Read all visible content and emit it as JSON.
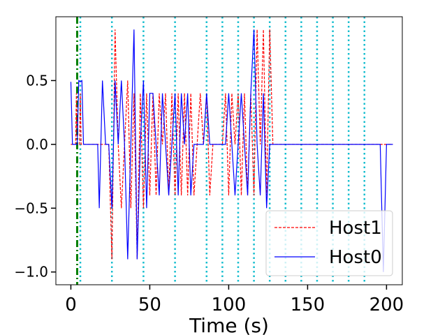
{
  "chart_data": {
    "type": "line",
    "title": "",
    "xlabel": "Time (s)",
    "ylabel": "",
    "xlim": [
      -9.5,
      210
    ],
    "ylim": [
      -1.1,
      1.0
    ],
    "xticks": [
      0,
      50,
      100,
      150,
      200
    ],
    "xtick_labels": [
      "0",
      "50",
      "100",
      "150",
      "200"
    ],
    "yticks": [
      -1.0,
      -0.5,
      0.0,
      0.5
    ],
    "ytick_labels": [
      "−1.0",
      "−0.5",
      "0.0",
      "0.5"
    ],
    "grid": false,
    "legend_position": "lower-right",
    "vertical_markers": {
      "cyan_dotted_x": [
        6,
        26,
        46,
        66,
        86,
        96,
        106,
        116,
        126,
        136,
        146,
        156,
        166,
        176,
        186
      ],
      "green_dashdot_x": [
        4
      ]
    },
    "series": [
      {
        "name": "Host1",
        "color": "#ff0000",
        "style": "dashed",
        "points": [
          [
            0,
            0
          ],
          [
            3,
            0
          ],
          [
            3.5,
            0.4
          ],
          [
            4,
            0
          ],
          [
            5.5,
            0
          ],
          [
            6,
            0.4
          ],
          [
            6.5,
            0
          ],
          [
            24,
            0
          ],
          [
            26,
            -0.9
          ],
          [
            28,
            0.9
          ],
          [
            30,
            0
          ],
          [
            32,
            -0.5
          ],
          [
            34,
            0
          ],
          [
            36,
            0.5
          ],
          [
            38,
            -0.5
          ],
          [
            40,
            0.4
          ],
          [
            42,
            -0.9
          ],
          [
            44,
            0.4
          ],
          [
            46,
            -0.5
          ],
          [
            48,
            0.4
          ],
          [
            50,
            -0.4
          ],
          [
            52,
            0.4
          ],
          [
            54,
            -0.4
          ],
          [
            56,
            0.4
          ],
          [
            58,
            0
          ],
          [
            60,
            0.4
          ],
          [
            62,
            -0.4
          ],
          [
            64,
            0.4
          ],
          [
            66,
            -0.4
          ],
          [
            68,
            0.4
          ],
          [
            70,
            -0.4
          ],
          [
            72,
            0.4
          ],
          [
            74,
            -0.4
          ],
          [
            76,
            0.4
          ],
          [
            78,
            -0.4
          ],
          [
            80,
            0
          ],
          [
            82,
            0.4
          ],
          [
            84,
            0
          ],
          [
            86,
            0.4
          ],
          [
            88,
            -0.4
          ],
          [
            90,
            0
          ],
          [
            96,
            0
          ],
          [
            98,
            0.4
          ],
          [
            100,
            -0.4
          ],
          [
            102,
            0.4
          ],
          [
            104,
            0
          ],
          [
            106,
            0.4
          ],
          [
            108,
            -0.4
          ],
          [
            110,
            0.4
          ],
          [
            112,
            -0.4
          ],
          [
            114,
            0.4
          ],
          [
            116,
            -0.4
          ],
          [
            118,
            0.9
          ],
          [
            120,
            0
          ],
          [
            122,
            0.9
          ],
          [
            124,
            -0.4
          ],
          [
            126,
            0.9
          ],
          [
            128,
            0
          ],
          [
            204,
            0
          ]
        ]
      },
      {
        "name": "Host0",
        "color": "#0000ff",
        "style": "solid",
        "points": [
          [
            0,
            0.49
          ],
          [
            1,
            0
          ],
          [
            4,
            0
          ],
          [
            5,
            0.5
          ],
          [
            6,
            0.49
          ],
          [
            7,
            0.5
          ],
          [
            8,
            0
          ],
          [
            17,
            0
          ],
          [
            18,
            -0.5
          ],
          [
            20,
            0.5
          ],
          [
            22,
            0
          ],
          [
            24,
            0
          ],
          [
            26,
            -0.5
          ],
          [
            28,
            0.5
          ],
          [
            30,
            0
          ],
          [
            32,
            0.5
          ],
          [
            34,
            0
          ],
          [
            36,
            -0.9
          ],
          [
            38,
            0
          ],
          [
            40,
            0.9
          ],
          [
            42,
            -0.9
          ],
          [
            44,
            0
          ],
          [
            46,
            0.5
          ],
          [
            48,
            -0.5
          ],
          [
            50,
            0.4
          ],
          [
            52,
            0.4
          ],
          [
            54,
            0
          ],
          [
            56,
            -0.4
          ],
          [
            58,
            0.4
          ],
          [
            60,
            0
          ],
          [
            62,
            -0.4
          ],
          [
            64,
            0
          ],
          [
            66,
            0.4
          ],
          [
            68,
            -0.4
          ],
          [
            70,
            0.4
          ],
          [
            72,
            0
          ],
          [
            74,
            0.4
          ],
          [
            76,
            -0.4
          ],
          [
            78,
            0
          ],
          [
            84,
            0
          ],
          [
            86,
            0.4
          ],
          [
            88,
            0
          ],
          [
            98,
            0
          ],
          [
            100,
            0.4
          ],
          [
            102,
            0
          ],
          [
            104,
            -0.4
          ],
          [
            106,
            0
          ],
          [
            108,
            0.4
          ],
          [
            110,
            0
          ],
          [
            112,
            -0.4
          ],
          [
            114,
            0.4
          ],
          [
            116,
            0.9
          ],
          [
            118,
            0
          ],
          [
            120,
            -0.4
          ],
          [
            122,
            0.4
          ],
          [
            124,
            -0.5
          ],
          [
            126,
            0
          ],
          [
            196,
            0
          ],
          [
            198,
            -1.0
          ],
          [
            200,
            0
          ],
          [
            204,
            0
          ]
        ]
      }
    ]
  }
}
